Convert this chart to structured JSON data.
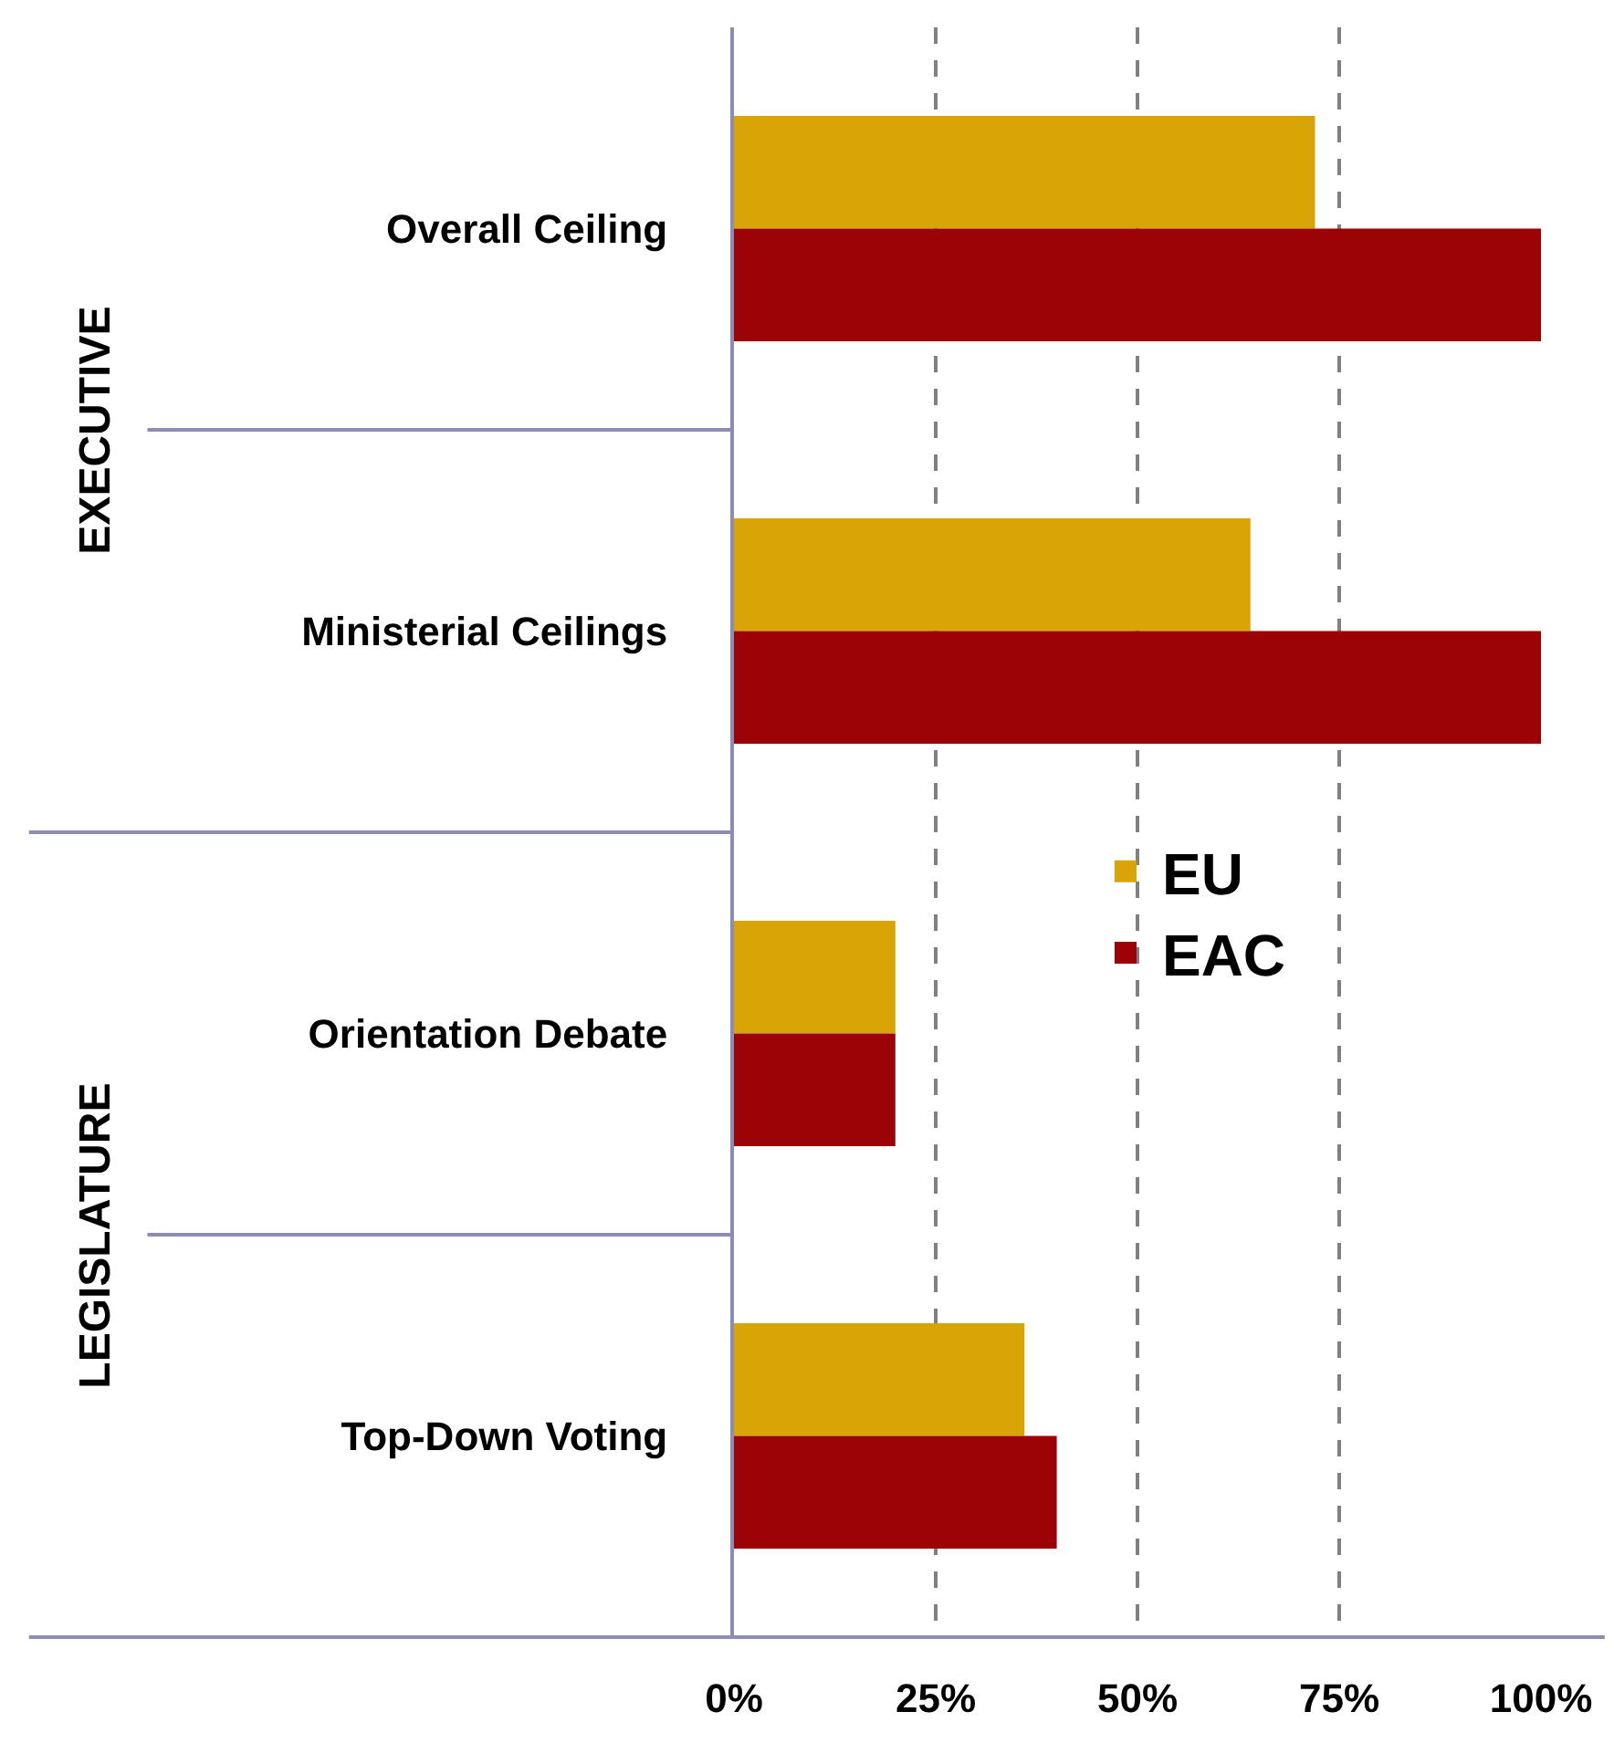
{
  "chart_data": {
    "type": "bar",
    "orientation": "horizontal",
    "categories": [
      "Overall Ceiling",
      "Ministerial Ceilings",
      "Orientation Debate",
      "Top-Down Voting"
    ],
    "series": [
      {
        "name": "EU",
        "color": "#d9a406",
        "values": [
          72,
          64,
          20,
          36
        ]
      },
      {
        "name": "EAC",
        "color": "#9c0306",
        "values": [
          100,
          100,
          20,
          40
        ]
      }
    ],
    "xlim": [
      0,
      100
    ],
    "xticks": [
      {
        "value": 0,
        "label": "0%"
      },
      {
        "value": 25,
        "label": "25%"
      },
      {
        "value": 50,
        "label": "50%"
      },
      {
        "value": 75,
        "label": "75%"
      },
      {
        "value": 100,
        "label": "100%"
      }
    ],
    "annotations": [
      "EXECUTIVE",
      "LEGISLATURE"
    ],
    "grid": "x",
    "legend": "center"
  }
}
